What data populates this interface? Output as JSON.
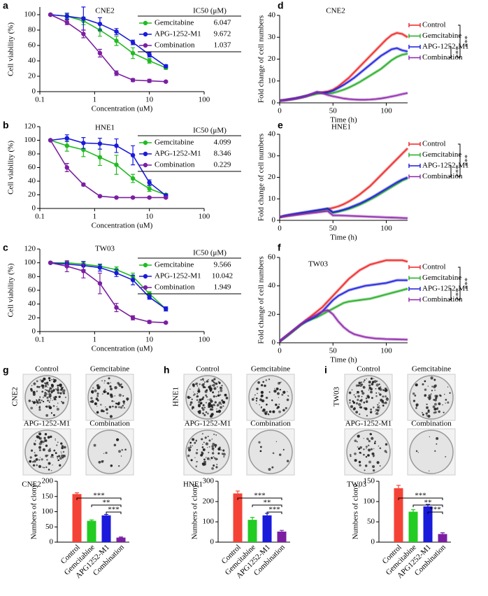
{
  "chart_data": [
    {
      "type": "dose-response",
      "panel_label": "a",
      "title": "CNE2",
      "x_label": "Concentration (uM)",
      "y_label": "Cell viability (%)",
      "log_x": true,
      "xlim": [
        0.1,
        100
      ],
      "xticks": [
        0.1,
        1,
        10,
        100
      ],
      "ylim": [
        0,
        110
      ],
      "yticks": [
        0,
        20,
        40,
        60,
        80,
        100
      ],
      "x": [
        0.15625,
        0.3125,
        0.625,
        1.25,
        2.5,
        5,
        10,
        20
      ],
      "table_header": "IC50 (μM)",
      "series": [
        {
          "name": "Gemcitabine",
          "color": "#22bb22",
          "values": [
            100,
            98,
            92,
            80,
            66,
            50,
            40,
            31
          ],
          "errors": [
            1,
            3,
            5,
            8,
            6,
            7,
            3,
            2
          ],
          "ic50": 6.047
        },
        {
          "name": "APG-1252-M1",
          "color": "#1a1adb",
          "values": [
            100,
            98,
            95,
            88,
            78,
            64,
            48,
            33
          ],
          "errors": [
            1,
            4,
            15,
            8,
            4,
            3,
            3,
            2
          ],
          "ic50": 9.672
        },
        {
          "name": "Combination",
          "color": "#7b1fa2",
          "values": [
            100,
            90,
            75,
            50,
            24,
            15,
            14,
            13
          ],
          "errors": [
            1,
            3,
            5,
            5,
            3,
            2,
            2,
            1
          ],
          "ic50": 1.037
        }
      ]
    },
    {
      "type": "dose-response",
      "panel_label": "b",
      "title": "HNE1",
      "x_label": "Concentration (uM)",
      "y_label": "Cell viability (%)",
      "log_x": true,
      "xlim": [
        0.1,
        100
      ],
      "xticks": [
        0.1,
        1,
        10,
        100
      ],
      "ylim": [
        0,
        120
      ],
      "yticks": [
        0,
        20,
        40,
        60,
        80,
        100,
        120
      ],
      "x": [
        0.15625,
        0.3125,
        0.625,
        1.25,
        2.5,
        5,
        10,
        20
      ],
      "table_header": "IC50 (μM)",
      "series": [
        {
          "name": "Gemcitabine",
          "color": "#22bb22",
          "values": [
            100,
            92,
            86,
            75,
            64,
            44,
            29,
            20
          ],
          "errors": [
            1,
            8,
            10,
            12,
            14,
            6,
            4,
            2
          ],
          "ic50": 4.099
        },
        {
          "name": "APG-1252-M1",
          "color": "#1a1adb",
          "values": [
            100,
            103,
            96,
            95,
            92,
            78,
            38,
            19
          ],
          "errors": [
            1,
            5,
            8,
            8,
            10,
            14,
            4,
            2
          ],
          "ic50": 8.346
        },
        {
          "name": "Combination",
          "color": "#7b1fa2",
          "values": [
            100,
            60,
            35,
            18,
            16,
            16,
            16,
            16
          ],
          "errors": [
            1,
            6,
            2,
            1,
            1,
            1,
            1,
            1
          ],
          "ic50": 0.229
        }
      ]
    },
    {
      "type": "dose-response",
      "panel_label": "c",
      "title": "TW03",
      "x_label": "Concentration (uM)",
      "y_label": "Cell viability (%)",
      "log_x": true,
      "xlim": [
        0.1,
        100
      ],
      "xticks": [
        0.1,
        1,
        10,
        100
      ],
      "ylim": [
        0,
        120
      ],
      "yticks": [
        0,
        20,
        40,
        60,
        80,
        100,
        120
      ],
      "x": [
        0.15625,
        0.3125,
        0.625,
        1.25,
        2.5,
        5,
        10,
        20
      ],
      "table_header": "IC50 (μM)",
      "series": [
        {
          "name": "Gemcitabine",
          "color": "#22bb22",
          "values": [
            100,
            100,
            98,
            95,
            90,
            80,
            55,
            33
          ],
          "errors": [
            1,
            2,
            3,
            3,
            4,
            5,
            3,
            3
          ],
          "ic50": 9.566
        },
        {
          "name": "APG-1252-M1",
          "color": "#1a1adb",
          "values": [
            100,
            98,
            96,
            93,
            85,
            75,
            50,
            33
          ],
          "errors": [
            1,
            3,
            6,
            5,
            5,
            7,
            3,
            3
          ],
          "ic50": 10.042
        },
        {
          "name": "Combination",
          "color": "#7b1fa2",
          "values": [
            100,
            95,
            88,
            70,
            35,
            20,
            14,
            13
          ],
          "errors": [
            1,
            8,
            10,
            15,
            6,
            3,
            2,
            1
          ],
          "ic50": 1.949
        }
      ]
    },
    {
      "type": "line",
      "panel_label": "d",
      "title": "CNE2",
      "x_label": "Time (h)",
      "y_label": "Fold change of cell numbers",
      "xlim": [
        0,
        120
      ],
      "xticks": [
        0,
        50,
        100
      ],
      "ylim": [
        0,
        40
      ],
      "yticks": [
        0,
        10,
        20,
        30,
        40
      ],
      "x": [
        0,
        5,
        10,
        15,
        20,
        25,
        30,
        35,
        40,
        45,
        50,
        55,
        60,
        65,
        70,
        75,
        80,
        85,
        90,
        95,
        100,
        105,
        110,
        115,
        120
      ],
      "significance": [
        "***",
        "***"
      ],
      "series": [
        {
          "name": "Control",
          "color": "#ee2222",
          "values": [
            1,
            1.3,
            1.7,
            2.1,
            2.6,
            3.2,
            3.8,
            4.4,
            4.8,
            5.2,
            6,
            7.5,
            9.5,
            11.5,
            14,
            16.5,
            19,
            21.5,
            24,
            26.5,
            29,
            31,
            32,
            31.5,
            30
          ]
        },
        {
          "name": "Gemcitabine",
          "color": "#22aa22",
          "values": [
            1,
            1.2,
            1.5,
            1.9,
            2.4,
            3,
            3.6,
            4.2,
            4.4,
            4.2,
            4.5,
            5.2,
            6,
            7,
            8.2,
            9.5,
            11,
            12.5,
            14,
            15.5,
            17.5,
            19.5,
            21,
            22,
            22.5
          ]
        },
        {
          "name": "APG-1252-M1",
          "color": "#1a1adb",
          "values": [
            1,
            1.3,
            1.7,
            2.1,
            2.6,
            3.2,
            4,
            4.8,
            4.6,
            4.8,
            5.5,
            6.8,
            8.2,
            9.8,
            11.5,
            13.5,
            15.5,
            17.5,
            19.5,
            21.5,
            23,
            24.5,
            25,
            24,
            23.5
          ]
        },
        {
          "name": "Combination",
          "color": "#8e24aa",
          "values": [
            1,
            1.2,
            1.5,
            1.9,
            2.4,
            3,
            4,
            5,
            4.5,
            3.6,
            3,
            2.5,
            2,
            1.7,
            1.5,
            1.4,
            1.4,
            1.5,
            1.7,
            2,
            2.4,
            2.9,
            3.4,
            4,
            4.5
          ]
        }
      ]
    },
    {
      "type": "line",
      "panel_label": "e",
      "title": "HNE1",
      "x_label": "Time (h)",
      "y_label": "Fold change of cell numbers",
      "xlim": [
        0,
        120
      ],
      "xticks": [
        0,
        50,
        100
      ],
      "ylim": [
        0,
        40
      ],
      "yticks": [
        0,
        10,
        20,
        30,
        40
      ],
      "x": [
        0,
        5,
        10,
        15,
        20,
        25,
        30,
        35,
        40,
        45,
        50,
        55,
        60,
        65,
        70,
        75,
        80,
        85,
        90,
        95,
        100,
        105,
        110,
        115,
        120
      ],
      "significance": [
        "***",
        "***"
      ],
      "series": [
        {
          "name": "Control",
          "color": "#ee2222",
          "values": [
            1.5,
            2,
            2.4,
            2.8,
            3.2,
            3.6,
            4,
            4.4,
            4.8,
            5.3,
            5.8,
            6.5,
            7.5,
            8.8,
            10.3,
            12,
            14,
            16,
            18.5,
            21,
            23.5,
            26,
            28.5,
            31,
            33.5
          ]
        },
        {
          "name": "Gemcitabine",
          "color": "#22aa22",
          "values": [
            1.5,
            2,
            2.4,
            2.8,
            3.2,
            3.6,
            4,
            4.4,
            4.8,
            5.2,
            3.5,
            4,
            4.6,
            5.3,
            6.2,
            7.2,
            8.4,
            9.7,
            11,
            12.5,
            14,
            15.5,
            17,
            18.5,
            19.5
          ]
        },
        {
          "name": "APG-1252-M1",
          "color": "#1a1adb",
          "values": [
            1.5,
            2.2,
            2.7,
            3.1,
            3.5,
            3.9,
            4.3,
            4.7,
            5.1,
            5.5,
            3.8,
            4.3,
            5,
            5.8,
            6.8,
            7.8,
            9,
            10.3,
            11.7,
            13.2,
            14.7,
            16.2,
            17.7,
            19,
            20
          ]
        },
        {
          "name": "Combination",
          "color": "#8e24aa",
          "values": [
            1.5,
            1.9,
            2.2,
            2.5,
            2.8,
            3.1,
            3.4,
            3.7,
            4,
            4.3,
            2.3,
            2.3,
            2.2,
            2.1,
            2,
            1.9,
            1.8,
            1.7,
            1.6,
            1.5,
            1.4,
            1.3,
            1.2,
            1.1,
            1
          ]
        }
      ]
    },
    {
      "type": "line",
      "panel_label": "f",
      "title": "TW03",
      "x_label": "Time (h)",
      "y_label": "Fold change of cell numbers",
      "xlim": [
        0,
        120
      ],
      "xticks": [
        0,
        50,
        100
      ],
      "ylim": [
        0,
        60
      ],
      "yticks": [
        0,
        20,
        40,
        60
      ],
      "x": [
        0,
        5,
        10,
        15,
        20,
        25,
        30,
        35,
        40,
        45,
        50,
        55,
        60,
        65,
        70,
        75,
        80,
        85,
        90,
        95,
        100,
        105,
        110,
        115,
        120
      ],
      "significance": [
        "***",
        "***"
      ],
      "series": [
        {
          "name": "Control",
          "color": "#ee2222",
          "values": [
            1,
            4,
            7,
            10,
            13,
            16,
            19,
            22,
            25,
            29,
            33,
            37,
            41,
            45,
            48,
            51,
            53,
            55,
            56,
            57,
            58,
            58,
            58,
            58,
            57
          ]
        },
        {
          "name": "Gemcitabine",
          "color": "#22aa22",
          "values": [
            1,
            3.5,
            6.5,
            9.5,
            12.5,
            15,
            16.5,
            18,
            20,
            22,
            24,
            26,
            28,
            29,
            29.5,
            30,
            30.5,
            31,
            32,
            33,
            34,
            35,
            36,
            37,
            38
          ]
        },
        {
          "name": "APG-1252-M1",
          "color": "#1a1adb",
          "values": [
            1,
            4,
            7,
            10,
            13,
            15,
            17,
            19,
            22,
            26,
            30,
            33,
            35,
            37,
            38,
            39,
            40,
            40.5,
            41,
            41.5,
            42,
            43,
            44,
            44,
            44
          ]
        },
        {
          "name": "Combination",
          "color": "#8e24aa",
          "values": [
            1,
            4,
            7,
            10,
            13,
            16,
            18,
            20,
            22,
            23,
            20,
            15,
            11,
            8,
            6,
            5,
            4,
            3.5,
            3,
            2.8,
            2.6,
            2.5,
            2.4,
            2.3,
            2.2
          ]
        }
      ]
    },
    {
      "type": "bar",
      "title": "CNE2",
      "y_label": "Numbers of clony",
      "categories": [
        "Control",
        "Gemcitabine",
        "APG1252-M1",
        "Combination"
      ],
      "colors": [
        "#f44336",
        "#22cc22",
        "#1a1adb",
        "#7b1fa2"
      ],
      "values": [
        158,
        70,
        88,
        15
      ],
      "errors": [
        4,
        3,
        3,
        2
      ],
      "ylim": [
        0,
        200
      ],
      "yticks": [
        0,
        50,
        100,
        150,
        200
      ],
      "significance": [
        "***",
        "**",
        "***"
      ]
    },
    {
      "type": "bar",
      "title": "HNE1",
      "y_label": "Numbers of clony",
      "categories": [
        "Control",
        "Gemcitabine",
        "APG1252-M1",
        "Combination"
      ],
      "colors": [
        "#f44336",
        "#22cc22",
        "#1a1adb",
        "#7b1fa2"
      ],
      "values": [
        240,
        110,
        132,
        52
      ],
      "errors": [
        12,
        12,
        10,
        6
      ],
      "ylim": [
        0,
        300
      ],
      "yticks": [
        0,
        100,
        200,
        300
      ],
      "significance": [
        "***",
        "**",
        "***"
      ]
    },
    {
      "type": "bar",
      "title": "TW03",
      "y_label": "Numbers of clony",
      "categories": [
        "Control",
        "Gemcitabine",
        "APG1252-M1",
        "Combination"
      ],
      "colors": [
        "#f44336",
        "#22cc22",
        "#1a1adb",
        "#7b1fa2"
      ],
      "values": [
        133,
        75,
        88,
        20
      ],
      "errors": [
        7,
        5,
        5,
        3
      ],
      "ylim": [
        0,
        150
      ],
      "yticks": [
        0,
        50,
        100,
        150
      ],
      "significance": [
        "***",
        "**",
        "***"
      ]
    }
  ],
  "colony_panels": [
    {
      "panel_label": "g",
      "cell_line": "CNE2",
      "treatments": [
        "Control",
        "Gemcitabine",
        "APG-1252-M1",
        "Combination"
      ]
    },
    {
      "panel_label": "h",
      "cell_line": "HNE1",
      "treatments": [
        "Control",
        "Gemcitabine",
        "APG-1252-M1",
        "Combination"
      ]
    },
    {
      "panel_label": "i",
      "cell_line": "TW03",
      "treatments": [
        "Control",
        "Gemcitabine",
        "APG-1252-M1",
        "Combination"
      ]
    }
  ]
}
